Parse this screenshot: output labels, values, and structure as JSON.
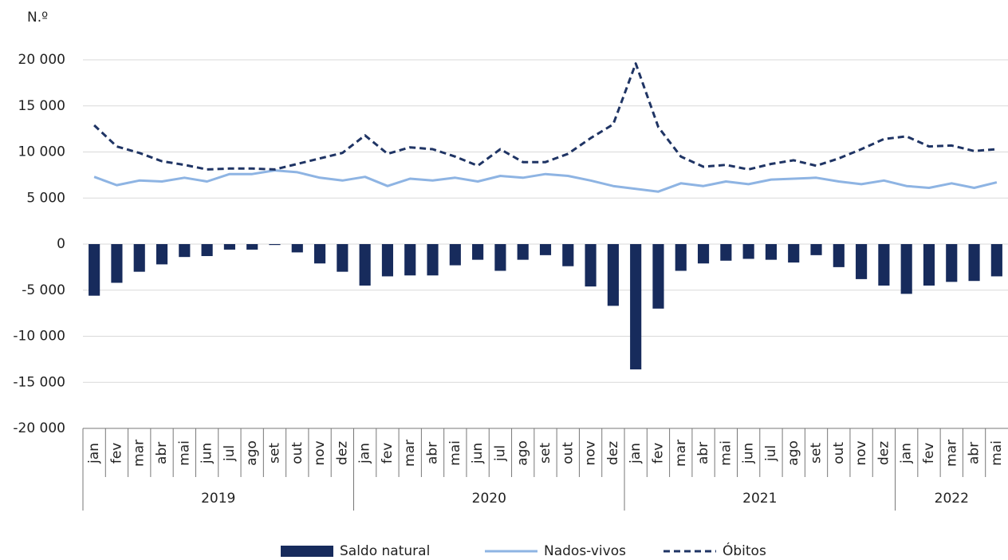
{
  "chart_data": {
    "type": "bar-line",
    "y_label": "N.º",
    "categories": [
      "jan",
      "fev",
      "mar",
      "abr",
      "mai",
      "jun",
      "jul",
      "ago",
      "set",
      "out",
      "nov",
      "dez",
      "jan",
      "fev",
      "mar",
      "abr",
      "mai",
      "jun",
      "jul",
      "ago",
      "set",
      "out",
      "nov",
      "dez",
      "jan",
      "fev",
      "mar",
      "abr",
      "mai",
      "jun",
      "jul",
      "ago",
      "set",
      "out",
      "nov",
      "dez",
      "jan",
      "fev",
      "mar",
      "abr",
      "mai"
    ],
    "years": [
      "2019",
      "2020",
      "2021",
      "2022"
    ],
    "series": [
      {
        "name": "Saldo natural",
        "kind": "bar",
        "color": "#172b5c",
        "values": [
          -5600,
          -4200,
          -3000,
          -2200,
          -1400,
          -1300,
          -600,
          -600,
          -100,
          -900,
          -2100,
          -3000,
          -4500,
          -3500,
          -3400,
          -3400,
          -2300,
          -1700,
          -2900,
          -1700,
          -1200,
          -2400,
          -4600,
          -6700,
          -13600,
          -7000,
          -2900,
          -2100,
          -1800,
          -1600,
          -1700,
          -2000,
          -1200,
          -2500,
          -3800,
          -4500,
          -5400,
          -4500,
          -4100,
          -4000,
          -3500
        ]
      },
      {
        "name": "Nados-vivos",
        "kind": "line",
        "color": "#8eb4e3",
        "values": [
          7300,
          6400,
          6900,
          6800,
          7200,
          6800,
          7600,
          7600,
          8000,
          7800,
          7200,
          6900,
          7300,
          6300,
          7100,
          6900,
          7200,
          6800,
          7400,
          7200,
          7600,
          7400,
          6900,
          6300,
          6000,
          5700,
          6600,
          6300,
          6800,
          6500,
          7000,
          7100,
          7200,
          6800,
          6500,
          6900,
          6300,
          6100,
          6600,
          6100,
          6700
        ]
      },
      {
        "name": "Óbitos",
        "kind": "dashed-line",
        "color": "#1f3464",
        "values": [
          12900,
          10600,
          9900,
          9000,
          8600,
          8100,
          8200,
          8200,
          8100,
          8700,
          9300,
          9900,
          11800,
          9800,
          10500,
          10300,
          9500,
          8500,
          10300,
          8900,
          8900,
          9800,
          11500,
          13000,
          19600,
          12700,
          9500,
          8400,
          8600,
          8100,
          8700,
          9100,
          8500,
          9300,
          10300,
          11400,
          11700,
          10600,
          10700,
          10100,
          10300
        ]
      }
    ],
    "ylim": [
      -20000,
      20000
    ],
    "yticks": [
      {
        "value": -20000,
        "label": "-20 000"
      },
      {
        "value": -15000,
        "label": "-15 000"
      },
      {
        "value": -10000,
        "label": "-10 000"
      },
      {
        "value": -5000,
        "label": "-5 000"
      },
      0,
      {
        "value": 5000,
        "label": "5 000"
      },
      {
        "value": 10000,
        "label": "10 000"
      },
      {
        "value": 15000,
        "label": "15 000"
      },
      {
        "value": 20000,
        "label": "20 000"
      }
    ],
    "grid": true,
    "legend": "bottom"
  }
}
